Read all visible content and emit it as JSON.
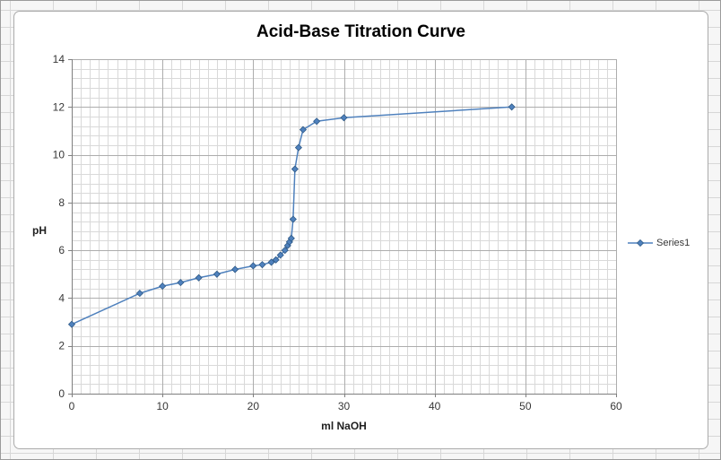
{
  "chart_data": {
    "type": "line",
    "title": "Acid-Base Titration Curve",
    "xlabel": "ml NaOH",
    "ylabel": "pH",
    "xlim": [
      0,
      60
    ],
    "ylim": [
      0,
      14
    ],
    "x_ticks": [
      0,
      10,
      20,
      30,
      40,
      50,
      60
    ],
    "y_ticks": [
      0,
      2,
      4,
      6,
      8,
      10,
      12,
      14
    ],
    "minor_x_step": 1,
    "minor_y_step": 0.4,
    "grid": "major+minor",
    "legend_position": "right",
    "colors": {
      "series": "#4F81BD",
      "series_border": "#2F5A87",
      "minor_grid": "#d9d9d9",
      "major_grid": "#adadad",
      "axis": "#7f7f7f"
    },
    "series": [
      {
        "name": "Series1",
        "color": "#4F81BD",
        "marker": "diamond",
        "x": [
          0,
          7.5,
          10,
          12,
          14,
          16,
          18,
          20,
          21,
          22,
          22.5,
          23,
          23.5,
          23.8,
          24,
          24.2,
          24.4,
          24.6,
          25,
          25.5,
          27,
          30,
          48.5
        ],
        "y": [
          2.9,
          4.2,
          4.5,
          4.65,
          4.85,
          5.0,
          5.2,
          5.35,
          5.4,
          5.5,
          5.6,
          5.8,
          6.0,
          6.2,
          6.35,
          6.5,
          7.3,
          9.4,
          10.3,
          11.05,
          11.4,
          11.55,
          12.0
        ]
      }
    ]
  }
}
